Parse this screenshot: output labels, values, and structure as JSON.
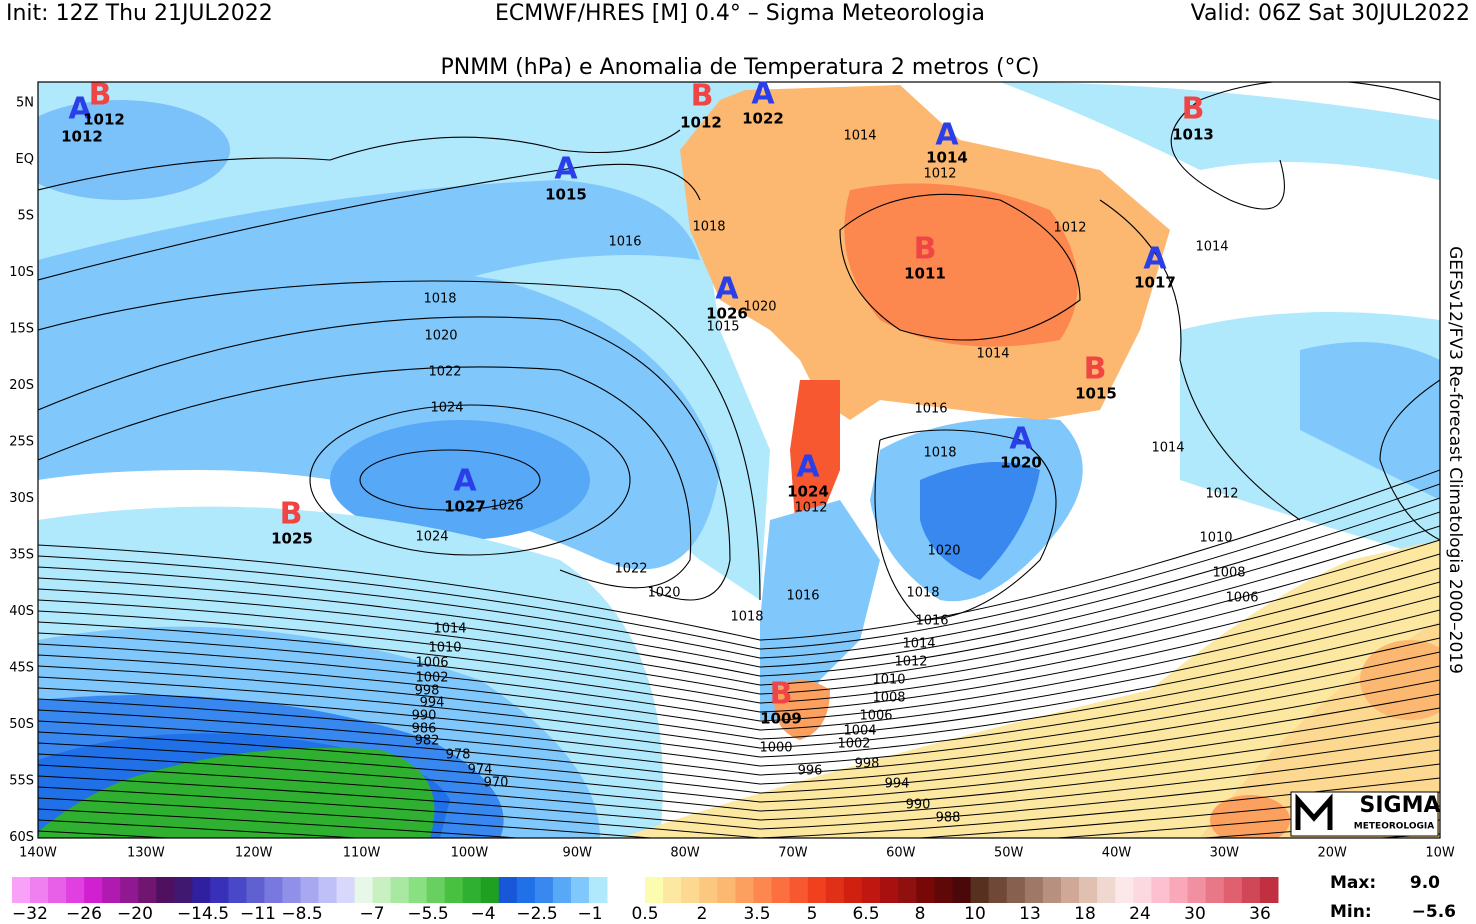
{
  "header": {
    "init": "Init: 12Z Thu 21JUL2022",
    "model": "ECMWF/HRES [M] 0.4° – Sigma Meteorologia",
    "valid": "Valid: 06Z Sat 30JUL2022",
    "title": "PNMM (hPa) e Anomalia de Temperatura 2 metros (°C)"
  },
  "side_note": "GEFSv12/FV3 Re-forecast Climatologia 2000–2019",
  "lat_labels": [
    "5N",
    "EQ",
    "5S",
    "10S",
    "15S",
    "20S",
    "25S",
    "30S",
    "35S",
    "40S",
    "45S",
    "50S",
    "55S",
    "60S"
  ],
  "lon_labels": [
    "140W",
    "130W",
    "120W",
    "110W",
    "100W",
    "90W",
    "80W",
    "70W",
    "60W",
    "50W",
    "40W",
    "30W",
    "20W",
    "10W"
  ],
  "centers": [
    {
      "letter": "A",
      "value": "1012"
    },
    {
      "letter": "B",
      "value": "1012"
    },
    {
      "letter": "A",
      "value": "1015"
    },
    {
      "letter": "B",
      "value": "1012"
    },
    {
      "letter": "A",
      "value": "1022"
    },
    {
      "letter": "A",
      "value": "1014"
    },
    {
      "letter": "B",
      "value": "1013"
    },
    {
      "letter": "B",
      "value": "1011"
    },
    {
      "letter": "A",
      "value": "1017"
    },
    {
      "letter": "A",
      "value": "1026"
    },
    {
      "letter": "B",
      "value": "1015"
    },
    {
      "letter": "A",
      "value": "1020"
    },
    {
      "letter": "A",
      "value": "1024"
    },
    {
      "letter": "A",
      "value": "1027"
    },
    {
      "letter": "B",
      "value": "1025"
    },
    {
      "letter": "B",
      "value": "1009"
    }
  ],
  "isobar_labels": [
    "1014",
    "1012",
    "1012",
    "1014",
    "1018",
    "1016",
    "1018",
    "1020",
    "1015",
    "1020",
    "1022",
    "1024",
    "1014",
    "1016",
    "1018",
    "1026",
    "1012",
    "1014",
    "1012",
    "1024",
    "1020",
    "1010",
    "1022",
    "1008",
    "1020",
    "1006",
    "1018",
    "1016",
    "1018",
    "1016",
    "1014",
    "1010",
    "1006",
    "1002",
    "998",
    "994",
    "990",
    "986",
    "982",
    "978",
    "974",
    "970",
    "1014",
    "1012",
    "1010",
    "1008",
    "1006",
    "1004",
    "1002",
    "1000",
    "998",
    "996",
    "994",
    "990",
    "988"
  ],
  "colorbar": {
    "negative_labels": [
      "−32",
      "−26",
      "−20",
      "−14.5",
      "−11",
      "−8.5",
      "−7",
      "−5.5",
      "−4",
      "−2.5",
      "−1"
    ],
    "positive_labels": [
      "0.5",
      "2",
      "3.5",
      "5",
      "6.5",
      "8",
      "10",
      "13",
      "18",
      "24",
      "30",
      "36"
    ],
    "negative_colors": [
      "#f9a0f9",
      "#f080f0",
      "#e860e8",
      "#e040e0",
      "#d020d0",
      "#b01ab0",
      "#901890",
      "#701570",
      "#501060",
      "#401870",
      "#3020a0",
      "#3830b8",
      "#4848c8",
      "#6060d0",
      "#7878e0",
      "#9090e8",
      "#a8a8f0",
      "#c0c0f8",
      "#d8d8fc",
      "#e8f8e8",
      "#c8f0c0",
      "#a8e8a0",
      "#88e080",
      "#68d060",
      "#48c040",
      "#30b030",
      "#20a020",
      "#1858d8",
      "#2070e8",
      "#3888f0",
      "#58a8f8",
      "#80c8fc",
      "#b0e8fc"
    ],
    "positive_colors": [
      "#fcfcb0",
      "#fce8a0",
      "#fcd890",
      "#fcc880",
      "#fcb870",
      "#fca060",
      "#fc8850",
      "#fc7040",
      "#f85830",
      "#f04020",
      "#e03018",
      "#d02010",
      "#c01810",
      "#a81010",
      "#901010",
      "#780808",
      "#600808",
      "#4a0808",
      "#583020",
      "#704838",
      "#886050",
      "#a07868",
      "#b89080",
      "#d0a898",
      "#e0c0b0",
      "#f0d8d0",
      "#fce8e8",
      "#fcd8e0",
      "#fcc0d0",
      "#f8a8b8",
      "#f090a0",
      "#e87888",
      "#e06070",
      "#d04858",
      "#c03040"
    ]
  },
  "stats": {
    "max_label": "Max:",
    "max": "9.0",
    "min_label": "Min:",
    "min": "−5.6"
  },
  "logo": {
    "name": "SIGMA",
    "sub": "METEOROLOGIA"
  }
}
